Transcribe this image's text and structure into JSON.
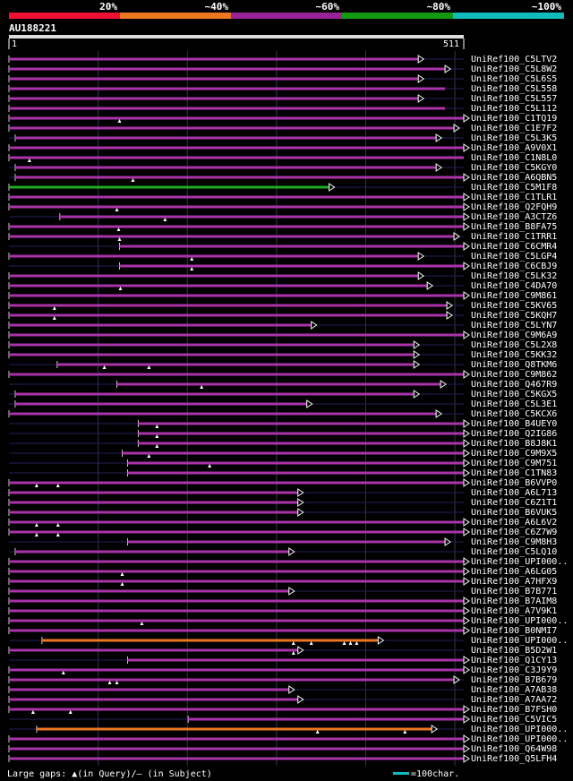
{
  "scale_labels": [
    "20%",
    "~40%",
    "~60%",
    "~80%",
    "~100%"
  ],
  "identity_bands": [
    {
      "label": "20%",
      "color": "#ee1133"
    },
    {
      "label": "~40%",
      "color": "#ee7722"
    },
    {
      "label": "~60%",
      "color": "#992299"
    },
    {
      "label": "~80%",
      "color": "#119911"
    },
    {
      "label": "~100%",
      "color": "#11bbbb"
    }
  ],
  "query": {
    "name": "AU188221",
    "start": "1",
    "end": "511",
    "length": 511
  },
  "footer": {
    "legend": "Large gaps: ▲(in Query)/– (in Subject)",
    "scale_note": "=100char."
  },
  "colors": {
    "magenta": "#aa33aa",
    "green": "#22aa22",
    "orange": "#ee7722",
    "cyan": "#11bbbb",
    "connector": "#22225a",
    "grid": "#333355",
    "text": "#ffffff"
  },
  "hits": [
    {
      "id": "UniRef100_C5LTV2",
      "start": 1,
      "end": 460,
      "color": "magenta",
      "gaps": [],
      "arrow": true
    },
    {
      "id": "UniRef100_C5L8W2",
      "start": 1,
      "end": 490,
      "color": "magenta",
      "gaps": [],
      "arrow": true
    },
    {
      "id": "UniRef100_C5L6S5",
      "start": 1,
      "end": 460,
      "color": "magenta",
      "gaps": [],
      "arrow": true
    },
    {
      "id": "UniRef100_C5L558",
      "start": 1,
      "end": 490,
      "color": "magenta",
      "gaps": [],
      "arrow": false
    },
    {
      "id": "UniRef100_C5L557",
      "start": 1,
      "end": 460,
      "color": "magenta",
      "gaps": [],
      "arrow": true
    },
    {
      "id": "UniRef100_C5L112",
      "start": 1,
      "end": 490,
      "color": "magenta",
      "gaps": [],
      "arrow": false
    },
    {
      "id": "UniRef100_C1TQ19",
      "start": 1,
      "end": 511,
      "color": "magenta",
      "gaps": [
        125
      ],
      "arrow": true
    },
    {
      "id": "UniRef100_C1E7F2",
      "start": 1,
      "end": 500,
      "color": "magenta",
      "gaps": [],
      "arrow": true
    },
    {
      "id": "UniRef100_C5L3K5",
      "start": 8,
      "end": 480,
      "color": "magenta",
      "gaps": [],
      "arrow": true
    },
    {
      "id": "UniRef100_A9V0X1",
      "start": 1,
      "end": 511,
      "color": "magenta",
      "gaps": [],
      "arrow": true
    },
    {
      "id": "UniRef100_C1N8L0",
      "start": 1,
      "end": 511,
      "color": "magenta",
      "gaps": [
        24
      ],
      "arrow": false
    },
    {
      "id": "UniRef100_C5KGY0",
      "start": 8,
      "end": 480,
      "color": "magenta",
      "gaps": [],
      "arrow": true
    },
    {
      "id": "UniRef100_A6QBN5",
      "start": 8,
      "end": 511,
      "color": "magenta",
      "gaps": [
        140
      ],
      "arrow": true
    },
    {
      "id": "UniRef100_C5M1F8",
      "start": 1,
      "end": 360,
      "color": "green",
      "gaps": [],
      "arrow": true
    },
    {
      "id": "UniRef100_C1TLR1",
      "start": 1,
      "end": 511,
      "color": "magenta",
      "gaps": [],
      "arrow": true
    },
    {
      "id": "UniRef100_Q2FQH9",
      "start": 1,
      "end": 511,
      "color": "magenta",
      "gaps": [
        122
      ],
      "arrow": true
    },
    {
      "id": "UniRef100_A3CTZ6",
      "start": 58,
      "end": 511,
      "color": "magenta",
      "gaps": [
        176
      ],
      "arrow": true
    },
    {
      "id": "UniRef100_B8FA75",
      "start": 1,
      "end": 511,
      "color": "magenta",
      "gaps": [
        124
      ],
      "arrow": true
    },
    {
      "id": "UniRef100_C1TRR1",
      "start": 1,
      "end": 500,
      "color": "magenta",
      "gaps": [
        125
      ],
      "arrow": true
    },
    {
      "id": "UniRef100_C6CMR4",
      "start": 125,
      "end": 511,
      "color": "magenta",
      "gaps": [],
      "arrow": true
    },
    {
      "id": "UniRef100_C5LGP4",
      "start": 1,
      "end": 460,
      "color": "magenta",
      "gaps": [
        206
      ],
      "arrow": true
    },
    {
      "id": "UniRef100_C6CBJ9",
      "start": 125,
      "end": 511,
      "color": "magenta",
      "gaps": [
        206
      ],
      "arrow": true
    },
    {
      "id": "UniRef100_C5LK32",
      "start": 1,
      "end": 460,
      "color": "magenta",
      "gaps": [],
      "arrow": true
    },
    {
      "id": "UniRef100_C4DA70",
      "start": 1,
      "end": 470,
      "color": "magenta",
      "gaps": [
        126
      ],
      "arrow": true
    },
    {
      "id": "UniRef100_C9M861",
      "start": 1,
      "end": 511,
      "color": "magenta",
      "gaps": [],
      "arrow": true
    },
    {
      "id": "UniRef100_C5KV65",
      "start": 1,
      "end": 492,
      "color": "magenta",
      "gaps": [
        52
      ],
      "arrow": true
    },
    {
      "id": "UniRef100_C5KQH7",
      "start": 1,
      "end": 492,
      "color": "magenta",
      "gaps": [
        52
      ],
      "arrow": true
    },
    {
      "id": "UniRef100_C5LYN7",
      "start": 1,
      "end": 340,
      "color": "magenta",
      "gaps": [],
      "arrow": true
    },
    {
      "id": "UniRef100_C9M6A9",
      "start": 1,
      "end": 511,
      "color": "magenta",
      "gaps": [],
      "arrow": true
    },
    {
      "id": "UniRef100_C5L2X8",
      "start": 1,
      "end": 455,
      "color": "magenta",
      "gaps": [],
      "arrow": true
    },
    {
      "id": "UniRef100_C5KK32",
      "start": 1,
      "end": 455,
      "color": "magenta",
      "gaps": [],
      "arrow": true
    },
    {
      "id": "UniRef100_Q8TKM6",
      "start": 55,
      "end": 455,
      "color": "magenta",
      "gaps": [
        108,
        158
      ],
      "arrow": true
    },
    {
      "id": "UniRef100_C9M862",
      "start": 1,
      "end": 511,
      "color": "magenta",
      "gaps": [],
      "arrow": true
    },
    {
      "id": "UniRef100_Q467R9",
      "start": 122,
      "end": 485,
      "color": "magenta",
      "gaps": [
        217
      ],
      "arrow": true
    },
    {
      "id": "UniRef100_C5KGX5",
      "start": 8,
      "end": 455,
      "color": "magenta",
      "gaps": [],
      "arrow": true
    },
    {
      "id": "UniRef100_C5L3E1",
      "start": 8,
      "end": 335,
      "color": "magenta",
      "gaps": [],
      "arrow": true
    },
    {
      "id": "UniRef100_C5KCX6",
      "start": 1,
      "end": 480,
      "color": "magenta",
      "gaps": [],
      "arrow": true
    },
    {
      "id": "UniRef100_B4UEY0",
      "start": 146,
      "end": 511,
      "color": "magenta",
      "gaps": [
        167
      ],
      "arrow": true
    },
    {
      "id": "UniRef100_Q2IG86",
      "start": 146,
      "end": 511,
      "color": "magenta",
      "gaps": [
        167
      ],
      "arrow": true
    },
    {
      "id": "UniRef100_B8J8K1",
      "start": 146,
      "end": 511,
      "color": "magenta",
      "gaps": [
        167
      ],
      "arrow": true
    },
    {
      "id": "UniRef100_C9M9X5",
      "start": 128,
      "end": 511,
      "color": "magenta",
      "gaps": [
        158
      ],
      "arrow": true
    },
    {
      "id": "UniRef100_C9M751",
      "start": 134,
      "end": 511,
      "color": "magenta",
      "gaps": [
        226
      ],
      "arrow": true
    },
    {
      "id": "UniRef100_C1TN83",
      "start": 134,
      "end": 511,
      "color": "magenta",
      "gaps": [],
      "arrow": true
    },
    {
      "id": "UniRef100_B6VVP0",
      "start": 1,
      "end": 511,
      "color": "magenta",
      "gaps": [
        32,
        56
      ],
      "arrow": true
    },
    {
      "id": "UniRef100_A6L713",
      "start": 1,
      "end": 325,
      "color": "magenta",
      "gaps": [],
      "arrow": true
    },
    {
      "id": "UniRef100_C6Z1T1",
      "start": 1,
      "end": 325,
      "color": "magenta",
      "gaps": [],
      "arrow": true
    },
    {
      "id": "UniRef100_B6VUK5",
      "start": 1,
      "end": 325,
      "color": "magenta",
      "gaps": [],
      "arrow": true
    },
    {
      "id": "UniRef100_A6L6V2",
      "start": 1,
      "end": 511,
      "color": "magenta",
      "gaps": [
        32,
        56
      ],
      "arrow": true
    },
    {
      "id": "UniRef100_C6Z7W9",
      "start": 1,
      "end": 511,
      "color": "magenta",
      "gaps": [
        32,
        56
      ],
      "arrow": true
    },
    {
      "id": "UniRef100_C9M8H3",
      "start": 134,
      "end": 490,
      "color": "magenta",
      "gaps": [],
      "arrow": true
    },
    {
      "id": "UniRef100_C5LQ10",
      "start": 8,
      "end": 315,
      "color": "magenta",
      "gaps": [],
      "arrow": true
    },
    {
      "id": "UniRef100_UPI000..",
      "start": 1,
      "end": 511,
      "color": "magenta",
      "gaps": [],
      "arrow": true
    },
    {
      "id": "UniRef100_A6LG05",
      "start": 1,
      "end": 511,
      "color": "magenta",
      "gaps": [
        128
      ],
      "arrow": true
    },
    {
      "id": "UniRef100_A7HFX9",
      "start": 1,
      "end": 511,
      "color": "magenta",
      "gaps": [
        128
      ],
      "arrow": true
    },
    {
      "id": "UniRef100_B7B771",
      "start": 1,
      "end": 315,
      "color": "magenta",
      "gaps": [],
      "arrow": true
    },
    {
      "id": "UniRef100_B7AIM8",
      "start": 1,
      "end": 511,
      "color": "magenta",
      "gaps": [],
      "arrow": true
    },
    {
      "id": "UniRef100_A7V9K1",
      "start": 1,
      "end": 511,
      "color": "magenta",
      "gaps": [],
      "arrow": true
    },
    {
      "id": "UniRef100_UPI000..",
      "start": 1,
      "end": 511,
      "color": "magenta",
      "gaps": [
        150
      ],
      "arrow": true
    },
    {
      "id": "UniRef100_B0NMI7",
      "start": 1,
      "end": 511,
      "color": "magenta",
      "gaps": [],
      "arrow": true
    },
    {
      "id": "UniRef100_UPI000..",
      "start": 38,
      "end": 415,
      "color": "orange",
      "gaps": [
        320,
        340,
        377,
        384,
        391
      ],
      "arrow": true
    },
    {
      "id": "UniRef100_B5D2W1",
      "start": 1,
      "end": 325,
      "color": "magenta",
      "gaps": [
        320
      ],
      "arrow": true
    },
    {
      "id": "UniRef100_Q1CY13",
      "start": 134,
      "end": 511,
      "color": "magenta",
      "gaps": [],
      "arrow": true
    },
    {
      "id": "UniRef100_C3J9Y9",
      "start": 1,
      "end": 511,
      "color": "magenta",
      "gaps": [
        62
      ],
      "arrow": true
    },
    {
      "id": "UniRef100_B7B679",
      "start": 1,
      "end": 500,
      "color": "magenta",
      "gaps": [
        114,
        122
      ],
      "arrow": true
    },
    {
      "id": "UniRef100_A7AB38",
      "start": 1,
      "end": 315,
      "color": "magenta",
      "gaps": [],
      "arrow": true
    },
    {
      "id": "UniRef100_A7AA72",
      "start": 1,
      "end": 325,
      "color": "magenta",
      "gaps": [],
      "arrow": true
    },
    {
      "id": "UniRef100_B7FSH0",
      "start": 1,
      "end": 511,
      "color": "magenta",
      "gaps": [
        28,
        70
      ],
      "arrow": true
    },
    {
      "id": "UniRef100_C5VIC5",
      "start": 202,
      "end": 511,
      "color": "magenta",
      "gaps": [],
      "arrow": true
    },
    {
      "id": "UniRef100_UPI000..",
      "start": 32,
      "end": 475,
      "color": "orange",
      "gaps": [
        347,
        445
      ],
      "arrow": true
    },
    {
      "id": "UniRef100_UPI000..",
      "start": 1,
      "end": 511,
      "color": "magenta",
      "gaps": [],
      "arrow": true
    },
    {
      "id": "UniRef100_Q64W98",
      "start": 1,
      "end": 511,
      "color": "magenta",
      "gaps": [],
      "arrow": true
    },
    {
      "id": "UniRef100_Q5LFH4",
      "start": 1,
      "end": 511,
      "color": "magenta",
      "gaps": [],
      "arrow": true
    }
  ]
}
